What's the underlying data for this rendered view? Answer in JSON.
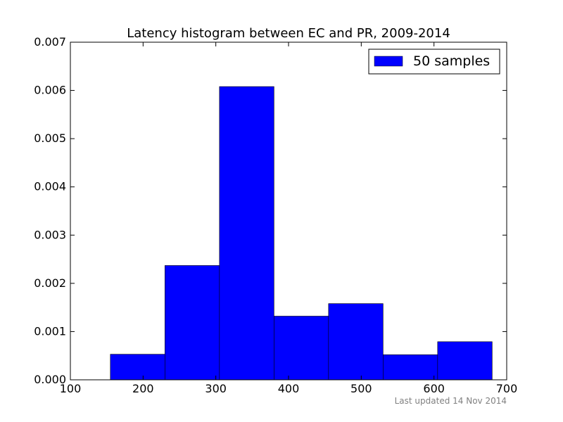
{
  "chart_data": {
    "type": "bar",
    "title": "Latency histogram between EC and PR, 2009-2014",
    "xlabel": "",
    "ylabel": "",
    "xlim": [
      100,
      700
    ],
    "ylim": [
      0,
      0.007
    ],
    "x_ticks": [
      "100",
      "200",
      "300",
      "400",
      "500",
      "600",
      "700"
    ],
    "y_ticks": [
      "0.000",
      "0.001",
      "0.002",
      "0.003",
      "0.004",
      "0.005",
      "0.006",
      "0.007"
    ],
    "bins": [
      {
        "start": 155,
        "end": 230,
        "value": 0.00053
      },
      {
        "start": 230,
        "end": 305,
        "value": 0.00237
      },
      {
        "start": 305,
        "end": 380,
        "value": 0.00608
      },
      {
        "start": 380,
        "end": 455,
        "value": 0.00132
      },
      {
        "start": 455,
        "end": 530,
        "value": 0.00158
      },
      {
        "start": 530,
        "end": 605,
        "value": 0.00052
      },
      {
        "start": 605,
        "end": 680,
        "value": 0.00079
      }
    ],
    "series": [
      {
        "name": "50 samples",
        "color": "#0000ff"
      }
    ],
    "legend_position": "top-right",
    "grid": false
  },
  "footnote": "Last updated 14 Nov 2014"
}
